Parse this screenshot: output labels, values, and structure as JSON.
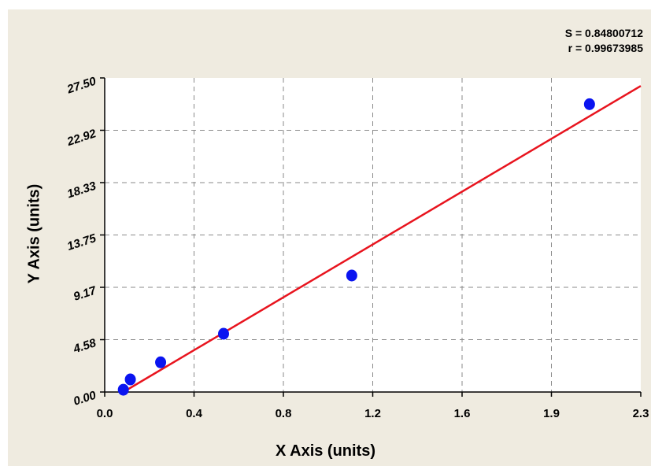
{
  "chart_data": {
    "type": "scatter",
    "stats": {
      "s": "S = 0.84800712",
      "r": "r = 0.99673985"
    },
    "xlabel": "X Axis (units)",
    "ylabel": "Y Axis (units)",
    "xlim": [
      0.0,
      2.3
    ],
    "ylim": [
      0.0,
      27.5
    ],
    "x_ticks": [
      "0.0",
      "0.4",
      "0.8",
      "1.2",
      "1.6",
      "1.9",
      "2.3"
    ],
    "y_ticks": [
      "0.00",
      "4.58",
      "9.17",
      "13.75",
      "18.33",
      "22.92",
      "27.50"
    ],
    "grid": true,
    "points": {
      "x": [
        0.08,
        0.11,
        0.24,
        0.51,
        1.06,
        2.08
      ],
      "y": [
        0.2,
        1.1,
        2.6,
        5.1,
        10.2,
        25.2
      ]
    },
    "fit_line": {
      "x": [
        0.08,
        2.3
      ],
      "y": [
        0.0,
        26.8
      ]
    },
    "colors": {
      "points": "#0a14f0",
      "fit_line": "#e8141e",
      "background": "#efebe0",
      "grid": "#8a8a8a"
    }
  }
}
